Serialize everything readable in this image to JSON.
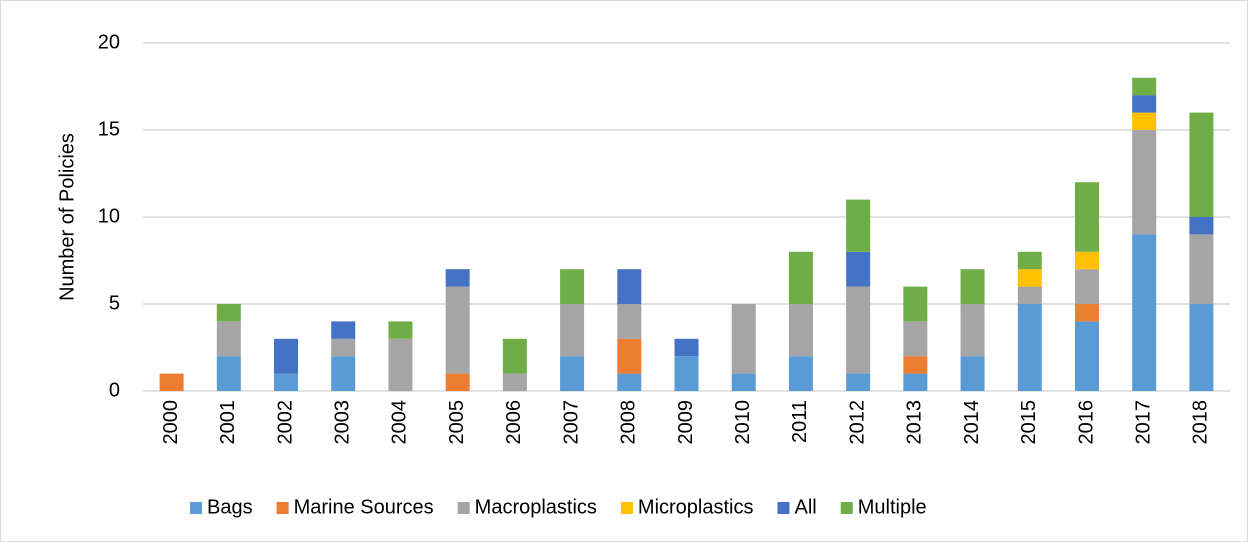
{
  "chart_data": {
    "type": "bar",
    "stacked": true,
    "y_label": "Number of Policies",
    "categories": [
      "2000",
      "2001",
      "2002",
      "2003",
      "2004",
      "2005",
      "2006",
      "2007",
      "2008",
      "2009",
      "2010",
      "2011",
      "2012",
      "2013",
      "2014",
      "2015",
      "2016",
      "2017",
      "2018"
    ],
    "series": [
      {
        "name": "Bags",
        "color": "#5b9bd5",
        "values": [
          0,
          2,
          1,
          2,
          0,
          0,
          0,
          2,
          1,
          2,
          1,
          2,
          1,
          1,
          2,
          5,
          4,
          9,
          5
        ]
      },
      {
        "name": "Marine Sources",
        "color": "#ed7d31",
        "values": [
          1,
          0,
          0,
          0,
          0,
          1,
          0,
          0,
          2,
          0,
          0,
          0,
          0,
          1,
          0,
          0,
          1,
          0,
          0
        ]
      },
      {
        "name": "Macroplastics",
        "color": "#a5a5a5",
        "values": [
          0,
          2,
          0,
          1,
          3,
          5,
          1,
          3,
          2,
          0,
          4,
          3,
          5,
          2,
          3,
          1,
          2,
          6,
          4
        ]
      },
      {
        "name": "Microplastics",
        "color": "#ffc000",
        "values": [
          0,
          0,
          0,
          0,
          0,
          0,
          0,
          0,
          0,
          0,
          0,
          0,
          0,
          0,
          0,
          1,
          1,
          1,
          0
        ]
      },
      {
        "name": "All",
        "color": "#4472c4",
        "values": [
          0,
          0,
          2,
          1,
          0,
          1,
          0,
          0,
          2,
          1,
          0,
          0,
          2,
          0,
          0,
          0,
          0,
          1,
          1
        ]
      },
      {
        "name": "Multiple",
        "color": "#70ad47",
        "values": [
          0,
          1,
          0,
          0,
          1,
          0,
          2,
          2,
          0,
          0,
          0,
          3,
          3,
          2,
          2,
          1,
          4,
          1,
          6
        ]
      }
    ],
    "ylim": [
      0,
      20
    ],
    "yticks": [
      0,
      5,
      10,
      15,
      20
    ],
    "grid": true,
    "legend": "bottom"
  }
}
